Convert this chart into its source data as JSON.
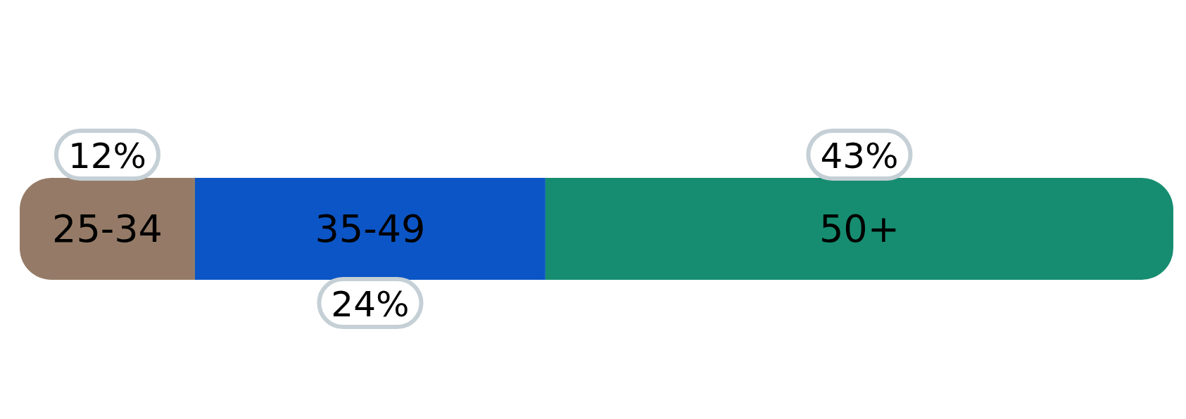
{
  "chart_data": {
    "type": "bar",
    "orientation": "horizontal",
    "stacked": true,
    "categories": [
      null
    ],
    "series": [
      {
        "name": "25-34",
        "color": "#957b67",
        "values": [
          12
        ],
        "value_labels": [
          "12%"
        ]
      },
      {
        "name": "35-49",
        "color": "#0c55c6",
        "values": [
          24
        ],
        "value_labels": [
          "24%"
        ]
      },
      {
        "name": "50+",
        "color": "#168d70",
        "values": [
          43
        ],
        "value_labels": [
          "43%"
        ]
      }
    ]
  }
}
